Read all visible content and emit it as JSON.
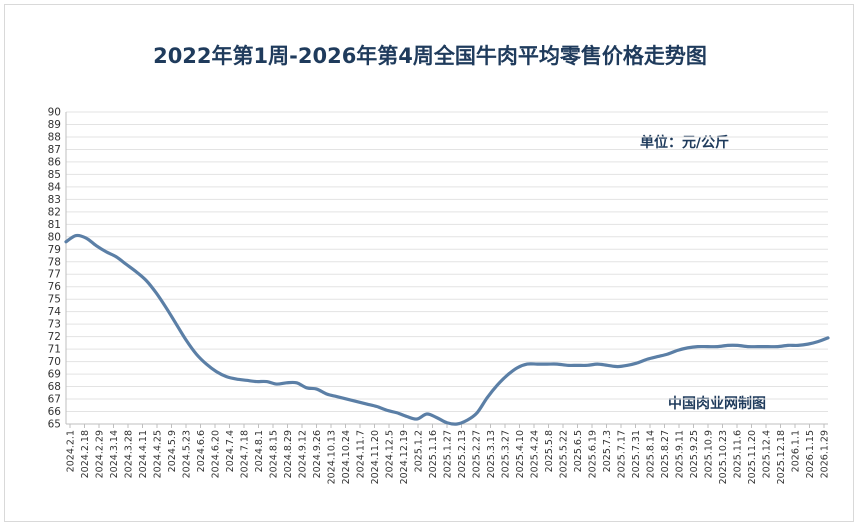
{
  "chart_data": {
    "type": "line",
    "title": "2022年第1周-2026年第4周全国牛肉平均零售价格走势图",
    "unit": "单位：元/公斤",
    "source": "中国肉业网制图",
    "ylim": [
      65,
      90
    ],
    "yticks": [
      65,
      66,
      67,
      68,
      69,
      70,
      71,
      72,
      73,
      74,
      75,
      76,
      77,
      78,
      79,
      80,
      81,
      82,
      83,
      84,
      85,
      86,
      87,
      88,
      89,
      90
    ],
    "grid": true,
    "series_color": "#5b7fa6",
    "xtick_labels": [
      "2024.2.1",
      "2024.2.18",
      "2024.2.29",
      "2024.3.14",
      "2024.3.28",
      "2024.4.11",
      "2024.4.25",
      "2024.5.9",
      "2024.5.23",
      "2024.6.6",
      "2024.6.20",
      "2024.7.4",
      "2024.7.18",
      "2024.8.1",
      "2024.8.15",
      "2024.8.29",
      "2024.9.12",
      "2024.9.26",
      "2024.10.13",
      "2024.10.24",
      "2024.11.7",
      "2024.11.20",
      "2024.12.5",
      "2024.12.19",
      "2025.1.2",
      "2025.1.16",
      "2025.1.27",
      "2025.2.13",
      "2025.2.27",
      "2025.3.13",
      "2025.3.27",
      "2025.4.10",
      "2025.4.24",
      "2025.5.8",
      "2025.5.22",
      "2025.6.5",
      "2025.6.19",
      "2025.7.3",
      "2025.7.17",
      "2025.7.31",
      "2025.8.14",
      "2025.8.27",
      "2025.9.11",
      "2025.9.25",
      "2025.10.9",
      "2025.10.23",
      "2025.11.6",
      "2025.11.20",
      "2025.12.4",
      "2025.12.18",
      "2026.1.1",
      "2026.1.15",
      "2026.1.29"
    ],
    "values": [
      79.6,
      80.1,
      79.9,
      79.3,
      78.8,
      78.4,
      77.8,
      77.2,
      76.5,
      75.5,
      74.3,
      73.0,
      71.7,
      70.6,
      69.8,
      69.2,
      68.8,
      68.6,
      68.5,
      68.4,
      68.4,
      68.2,
      68.3,
      68.3,
      67.9,
      67.8,
      67.4,
      67.2,
      67.0,
      66.8,
      66.6,
      66.4,
      66.1,
      65.9,
      65.6,
      65.4,
      65.8,
      65.5,
      65.1,
      65.0,
      65.3,
      65.9,
      67.1,
      68.1,
      68.9,
      69.5,
      69.8,
      69.8,
      69.8,
      69.8,
      69.7,
      69.7,
      69.7,
      69.8,
      69.7,
      69.6,
      69.7,
      69.9,
      70.2,
      70.4,
      70.6,
      70.9,
      71.1,
      71.2,
      71.2,
      71.2,
      71.3,
      71.3,
      71.2,
      71.2,
      71.2,
      71.2,
      71.3,
      71.3,
      71.4,
      71.6,
      71.9
    ]
  }
}
